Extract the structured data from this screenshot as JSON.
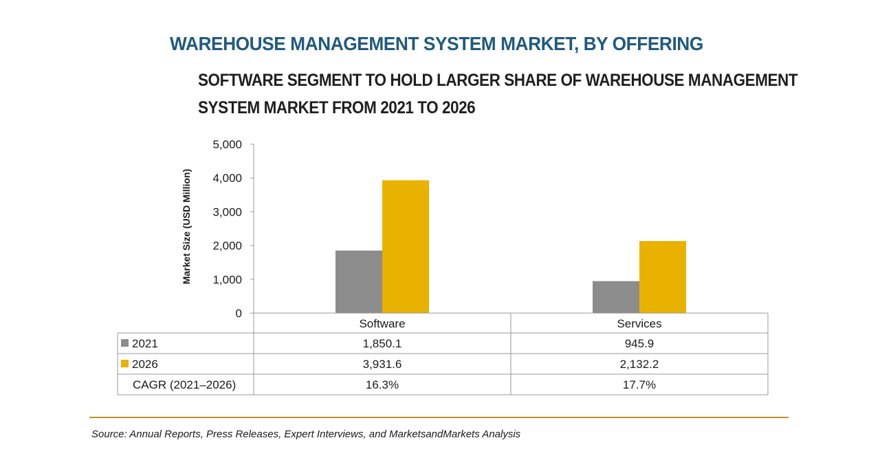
{
  "header": {
    "title": "WAREHOUSE MANAGEMENT SYSTEM MARKET, BY OFFERING",
    "subtitle_line1": "SOFTWARE SEGMENT TO HOLD LARGER SHARE OF WAREHOUSE MANAGEMENT",
    "subtitle_line2": "SYSTEM MARKET FROM 2021 TO 2026"
  },
  "colors": {
    "title": "#1f5a80",
    "series_2021": "#8c8c8c",
    "series_2026": "#e9b100",
    "rule": "#b8952a"
  },
  "chart_data": {
    "type": "bar",
    "categories": [
      "Software",
      "Services"
    ],
    "series": [
      {
        "name": "2021",
        "values": [
          1850.1,
          945.9
        ],
        "labels": [
          "1,850.1",
          "945.9"
        ]
      },
      {
        "name": "2026",
        "values": [
          3931.6,
          2132.2
        ],
        "labels": [
          "3,931.6",
          "2,132.2"
        ]
      }
    ],
    "cagr_label": "CAGR (2021–2026)",
    "cagr": [
      "16.3%",
      "17.7%"
    ],
    "ylabel": "Market Size (USD Million)",
    "ylim": [
      0,
      5000
    ],
    "yticks": [
      0,
      1000,
      2000,
      3000,
      4000,
      5000
    ],
    "ytick_labels": [
      "0",
      "1,000",
      "2,000",
      "3,000",
      "4,000",
      "5,000"
    ],
    "legend": "data-table",
    "grid": false
  },
  "footer": {
    "source": "Source: Annual Reports, Press Releases, Expert Interviews, and MarketsandMarkets Analysis"
  }
}
